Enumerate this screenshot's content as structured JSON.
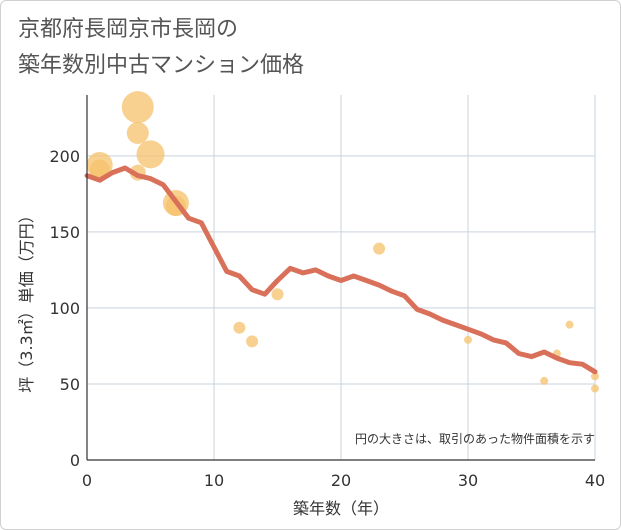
{
  "chart_data": {
    "type": "scatter",
    "title_lines": [
      "京都府長岡京市長岡の",
      "築年数別中古マンション価格"
    ],
    "xlabel": "築年数（年）",
    "ylabel": "坪（3.3㎡）単価（万円）",
    "xlim": [
      0,
      40
    ],
    "ylim": [
      0,
      240
    ],
    "x_ticks": [
      0,
      10,
      20,
      30,
      40
    ],
    "y_ticks": [
      0,
      50,
      100,
      150,
      200
    ],
    "note": "円の大きさは、取引のあった物件面積を示す",
    "colors": {
      "bubble": "#f5c26b",
      "line": "#d9705a",
      "grid": "#c9d3dc"
    },
    "bubbles": [
      {
        "x": 1,
        "y": 194,
        "r": 13
      },
      {
        "x": 1,
        "y": 191,
        "r": 10
      },
      {
        "x": 4,
        "y": 232,
        "r": 16
      },
      {
        "x": 4,
        "y": 215,
        "r": 11
      },
      {
        "x": 4,
        "y": 189,
        "r": 8
      },
      {
        "x": 5,
        "y": 201,
        "r": 14
      },
      {
        "x": 7,
        "y": 169,
        "r": 13
      },
      {
        "x": 7,
        "y": 167,
        "r": 10
      },
      {
        "x": 12,
        "y": 87,
        "r": 6
      },
      {
        "x": 13,
        "y": 78,
        "r": 6
      },
      {
        "x": 15,
        "y": 109,
        "r": 6
      },
      {
        "x": 23,
        "y": 139,
        "r": 6
      },
      {
        "x": 30,
        "y": 79,
        "r": 4
      },
      {
        "x": 36,
        "y": 52,
        "r": 4
      },
      {
        "x": 37,
        "y": 70,
        "r": 4
      },
      {
        "x": 38,
        "y": 89,
        "r": 4
      },
      {
        "x": 40,
        "y": 55,
        "r": 4
      },
      {
        "x": 40,
        "y": 47,
        "r": 4
      }
    ],
    "trend_line": {
      "x": [
        0,
        1,
        2,
        3,
        4,
        5,
        6,
        7,
        8,
        9,
        10,
        11,
        12,
        13,
        14,
        15,
        16,
        17,
        18,
        19,
        20,
        21,
        22,
        23,
        24,
        25,
        26,
        27,
        28,
        29,
        30,
        31,
        32,
        33,
        34,
        35,
        36,
        37,
        38,
        39,
        40
      ],
      "y": [
        187,
        184,
        189,
        192,
        187,
        185,
        181,
        170,
        159,
        156,
        140,
        124,
        121,
        112,
        109,
        118,
        126,
        123,
        125,
        121,
        118,
        121,
        118,
        115,
        111,
        108,
        99,
        96,
        92,
        89,
        86,
        83,
        79,
        77,
        70,
        68,
        71,
        67,
        64,
        63,
        58
      ]
    }
  }
}
